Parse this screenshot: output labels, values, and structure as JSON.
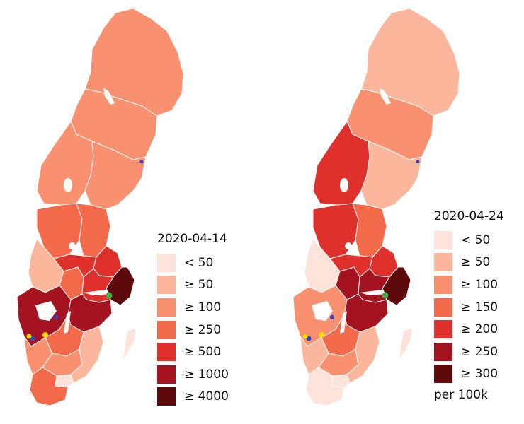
{
  "maps": [
    {
      "legend": {
        "title": "2020-04-14",
        "items": [
          {
            "label": "< 50",
            "color": "#fde3d9"
          },
          {
            "label": "≥ 50",
            "color": "#fbb69b"
          },
          {
            "label": "≥ 100",
            "color": "#f9906f"
          },
          {
            "label": "≥ 250",
            "color": "#f36a4a"
          },
          {
            "label": "≥ 500",
            "color": "#e0302b"
          },
          {
            "label": "≥ 1000",
            "color": "#a51320"
          },
          {
            "label": "≥ 4000",
            "color": "#5e0a0d"
          }
        ],
        "note": ""
      }
    },
    {
      "legend": {
        "title": "2020-04-24",
        "items": [
          {
            "label": "< 50",
            "color": "#fde3d9"
          },
          {
            "label": "≥ 50",
            "color": "#fbb69b"
          },
          {
            "label": "≥ 100",
            "color": "#f9906f"
          },
          {
            "label": "≥ 150",
            "color": "#f36a4a"
          },
          {
            "label": "≥ 200",
            "color": "#e0302b"
          },
          {
            "label": "≥ 250",
            "color": "#a51320"
          },
          {
            "label": "≥ 300",
            "color": "#5e0a0d"
          }
        ],
        "note": "per 100k"
      }
    }
  ]
}
